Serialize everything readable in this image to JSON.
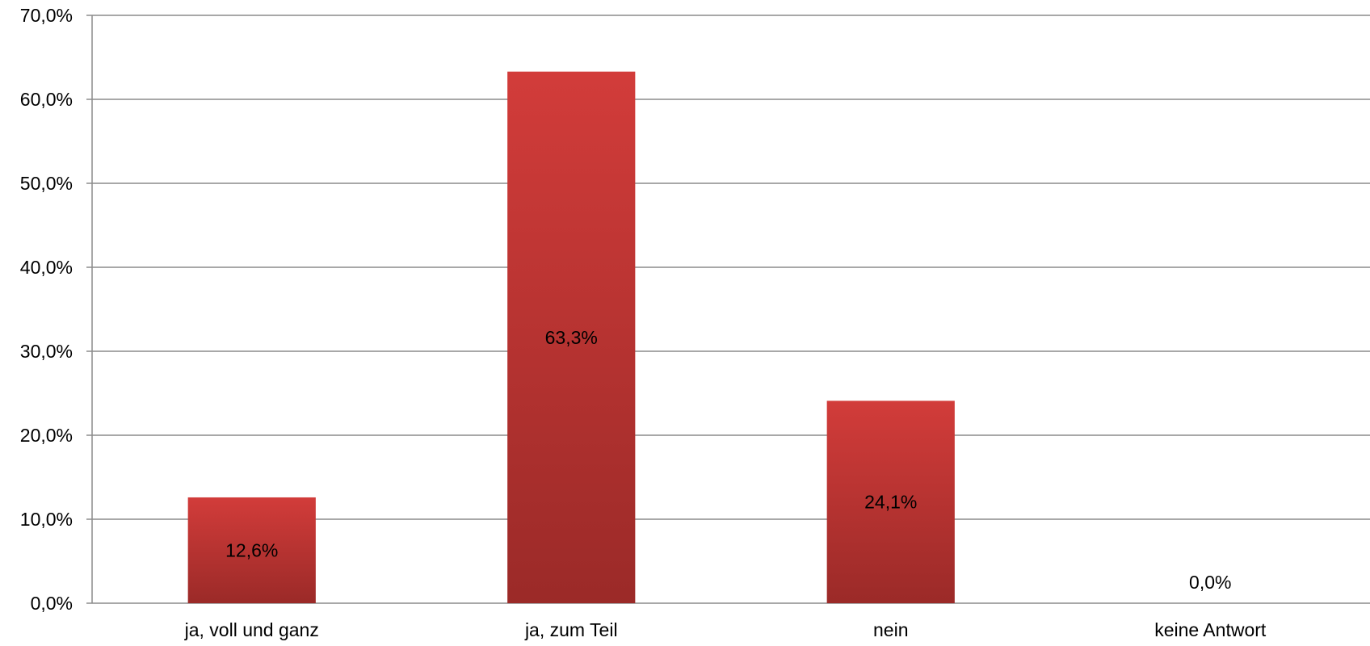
{
  "chart_data": {
    "type": "bar",
    "categories": [
      "ja, voll und ganz",
      "ja, zum Teil",
      "nein",
      "keine Antwort"
    ],
    "values": [
      12.6,
      63.3,
      24.1,
      0.0
    ],
    "data_labels": [
      "12,6%",
      "63,3%",
      "24,1%",
      "0,0%"
    ],
    "y_ticks": [
      0,
      10,
      20,
      30,
      40,
      50,
      60,
      70
    ],
    "y_tick_labels": [
      "0,0%",
      "10,0%",
      "20,0%",
      "30,0%",
      "40,0%",
      "50,0%",
      "60,0%",
      "70,0%"
    ],
    "ylim": [
      0,
      70
    ],
    "grid": true,
    "legend": "none",
    "title": "",
    "xlabel": "",
    "ylabel": "",
    "colors": {
      "bar_top": "#d23c3a",
      "bar_bottom": "#9b2a28",
      "grid": "#8c8c8c",
      "axis": "#8c8c8c"
    }
  }
}
